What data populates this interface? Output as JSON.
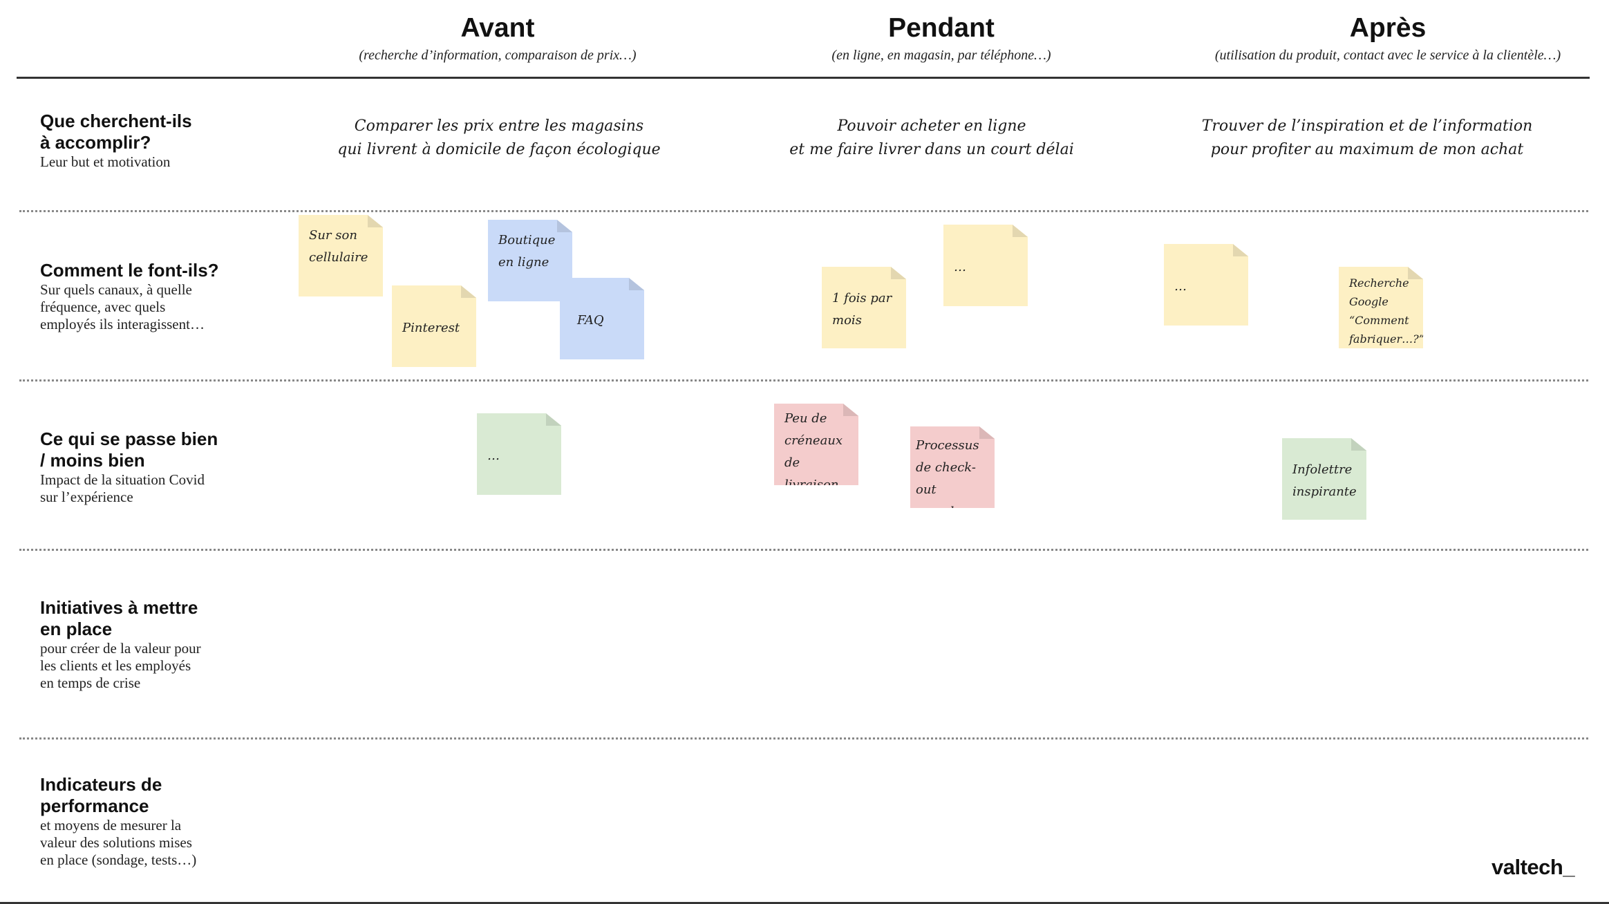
{
  "columns": [
    {
      "title": "Avant",
      "subtitle": "(recherche d’information, comparaison de prix…)"
    },
    {
      "title": "Pendant",
      "subtitle": "(en ligne, en magasin, par téléphone…)"
    },
    {
      "title": "Après",
      "subtitle": "(utilisation du produit, contact avec le service à la clientèle…)"
    }
  ],
  "rows": [
    {
      "title_l1": "Que cherchent-ils",
      "title_l2": "à accomplir?",
      "desc_l1": "Leur but et motivation"
    },
    {
      "title_l1": "Comment le font-ils?",
      "desc_l1": "Sur quels canaux, à quelle",
      "desc_l2": "fréquence, avec quels",
      "desc_l3": "employés ils interagissent…"
    },
    {
      "title_l1": "Ce qui se passe bien",
      "title_l2": "/ moins bien",
      "desc_l1": "Impact de la situation Covid",
      "desc_l2": "sur l’expérience"
    },
    {
      "title_l1": "Initiatives à mettre",
      "title_l2": "en place",
      "desc_l1": "pour créer de la valeur pour",
      "desc_l2": "les clients et les employés",
      "desc_l3": "en temps de crise"
    },
    {
      "title_l1": "Indicateurs de",
      "title_l2": "performance",
      "desc_l1": "et moyens de mesurer la",
      "desc_l2": "valeur des solutions mises",
      "desc_l3": "en place (sondage, tests…)"
    }
  ],
  "goals": [
    {
      "l1": "Comparer les prix entre les magasins",
      "l2": "qui livrent à domicile de façon écologique"
    },
    {
      "l1": "Pouvoir acheter en ligne",
      "l2": "et me faire livrer dans un court délai"
    },
    {
      "l1": "Trouver de l’inspiration et de l’information",
      "l2": "pour profiter au maximum de mon achat"
    }
  ],
  "stickies": [
    {
      "l1": "Sur son",
      "l2": "cellulaire",
      "color": "#fdf0c4"
    },
    {
      "l1": "Pinterest",
      "color": "#fdf0c4"
    },
    {
      "l1": "Boutique",
      "l2": "en ligne",
      "color": "#c9daf8"
    },
    {
      "l1": "FAQ",
      "color": "#c9daf8"
    },
    {
      "l1": "1 fois par",
      "l2": "mois",
      "color": "#fdf0c4"
    },
    {
      "l1": "…",
      "color": "#fdf0c4"
    },
    {
      "l1": "…",
      "color": "#fdf0c4"
    },
    {
      "l1": "Recherche",
      "l2": "Google",
      "l3": "“Comment",
      "l4": "fabriquer…?”",
      "color": "#fdf0c4"
    },
    {
      "l1": "…",
      "color": "#d9ead3"
    },
    {
      "l1": "Peu de",
      "l2": "créneaux",
      "l3": "de livraison",
      "color": "#f4cccc"
    },
    {
      "l1": "Processus",
      "l2": "de check-out",
      "l3": "complexe",
      "color": "#f4cccc"
    },
    {
      "l1": "Infolettre",
      "l2": "inspirante",
      "color": "#d9ead3"
    }
  ],
  "logo": "valtech_"
}
